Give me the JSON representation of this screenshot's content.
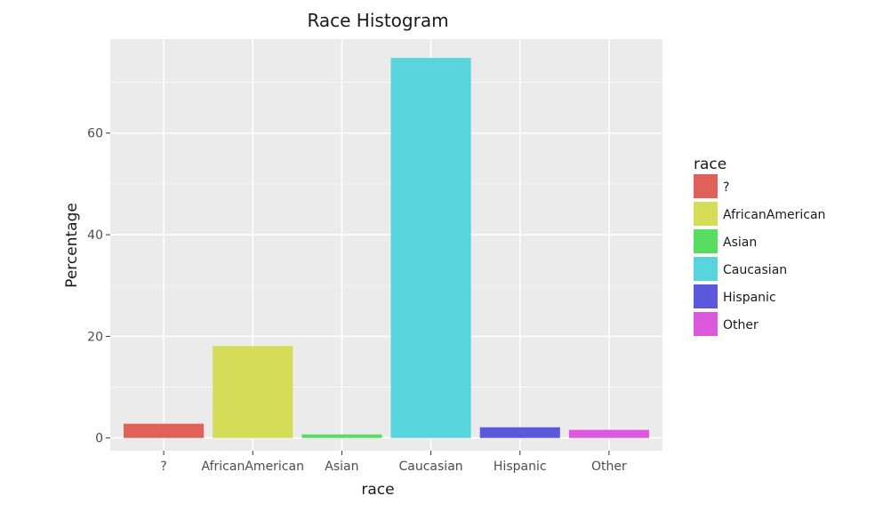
{
  "chart_data": {
    "type": "bar",
    "title": "Race Histogram",
    "xlabel": "race",
    "ylabel": "Percentage",
    "categories": [
      "?",
      "AfricanAmerican",
      "Asian",
      "Caucasian",
      "Hispanic",
      "Other"
    ],
    "values": [
      2.8,
      18.1,
      0.7,
      74.8,
      2.1,
      1.6
    ],
    "ylim": [
      -2.5,
      78.5
    ],
    "yticks": [
      0,
      20,
      40,
      60
    ],
    "grid": true,
    "legend": {
      "title": "race",
      "placement": "right",
      "entries": [
        "?",
        "AfricanAmerican",
        "Asian",
        "Caucasian",
        "Hispanic",
        "Other"
      ]
    },
    "colors": [
      "#e0605a",
      "#d4dc58",
      "#58dd60",
      "#58d4dc",
      "#5c58dc",
      "#dc58dc"
    ],
    "panel_background": "#ebebeb",
    "grid_color": "#ffffff"
  }
}
